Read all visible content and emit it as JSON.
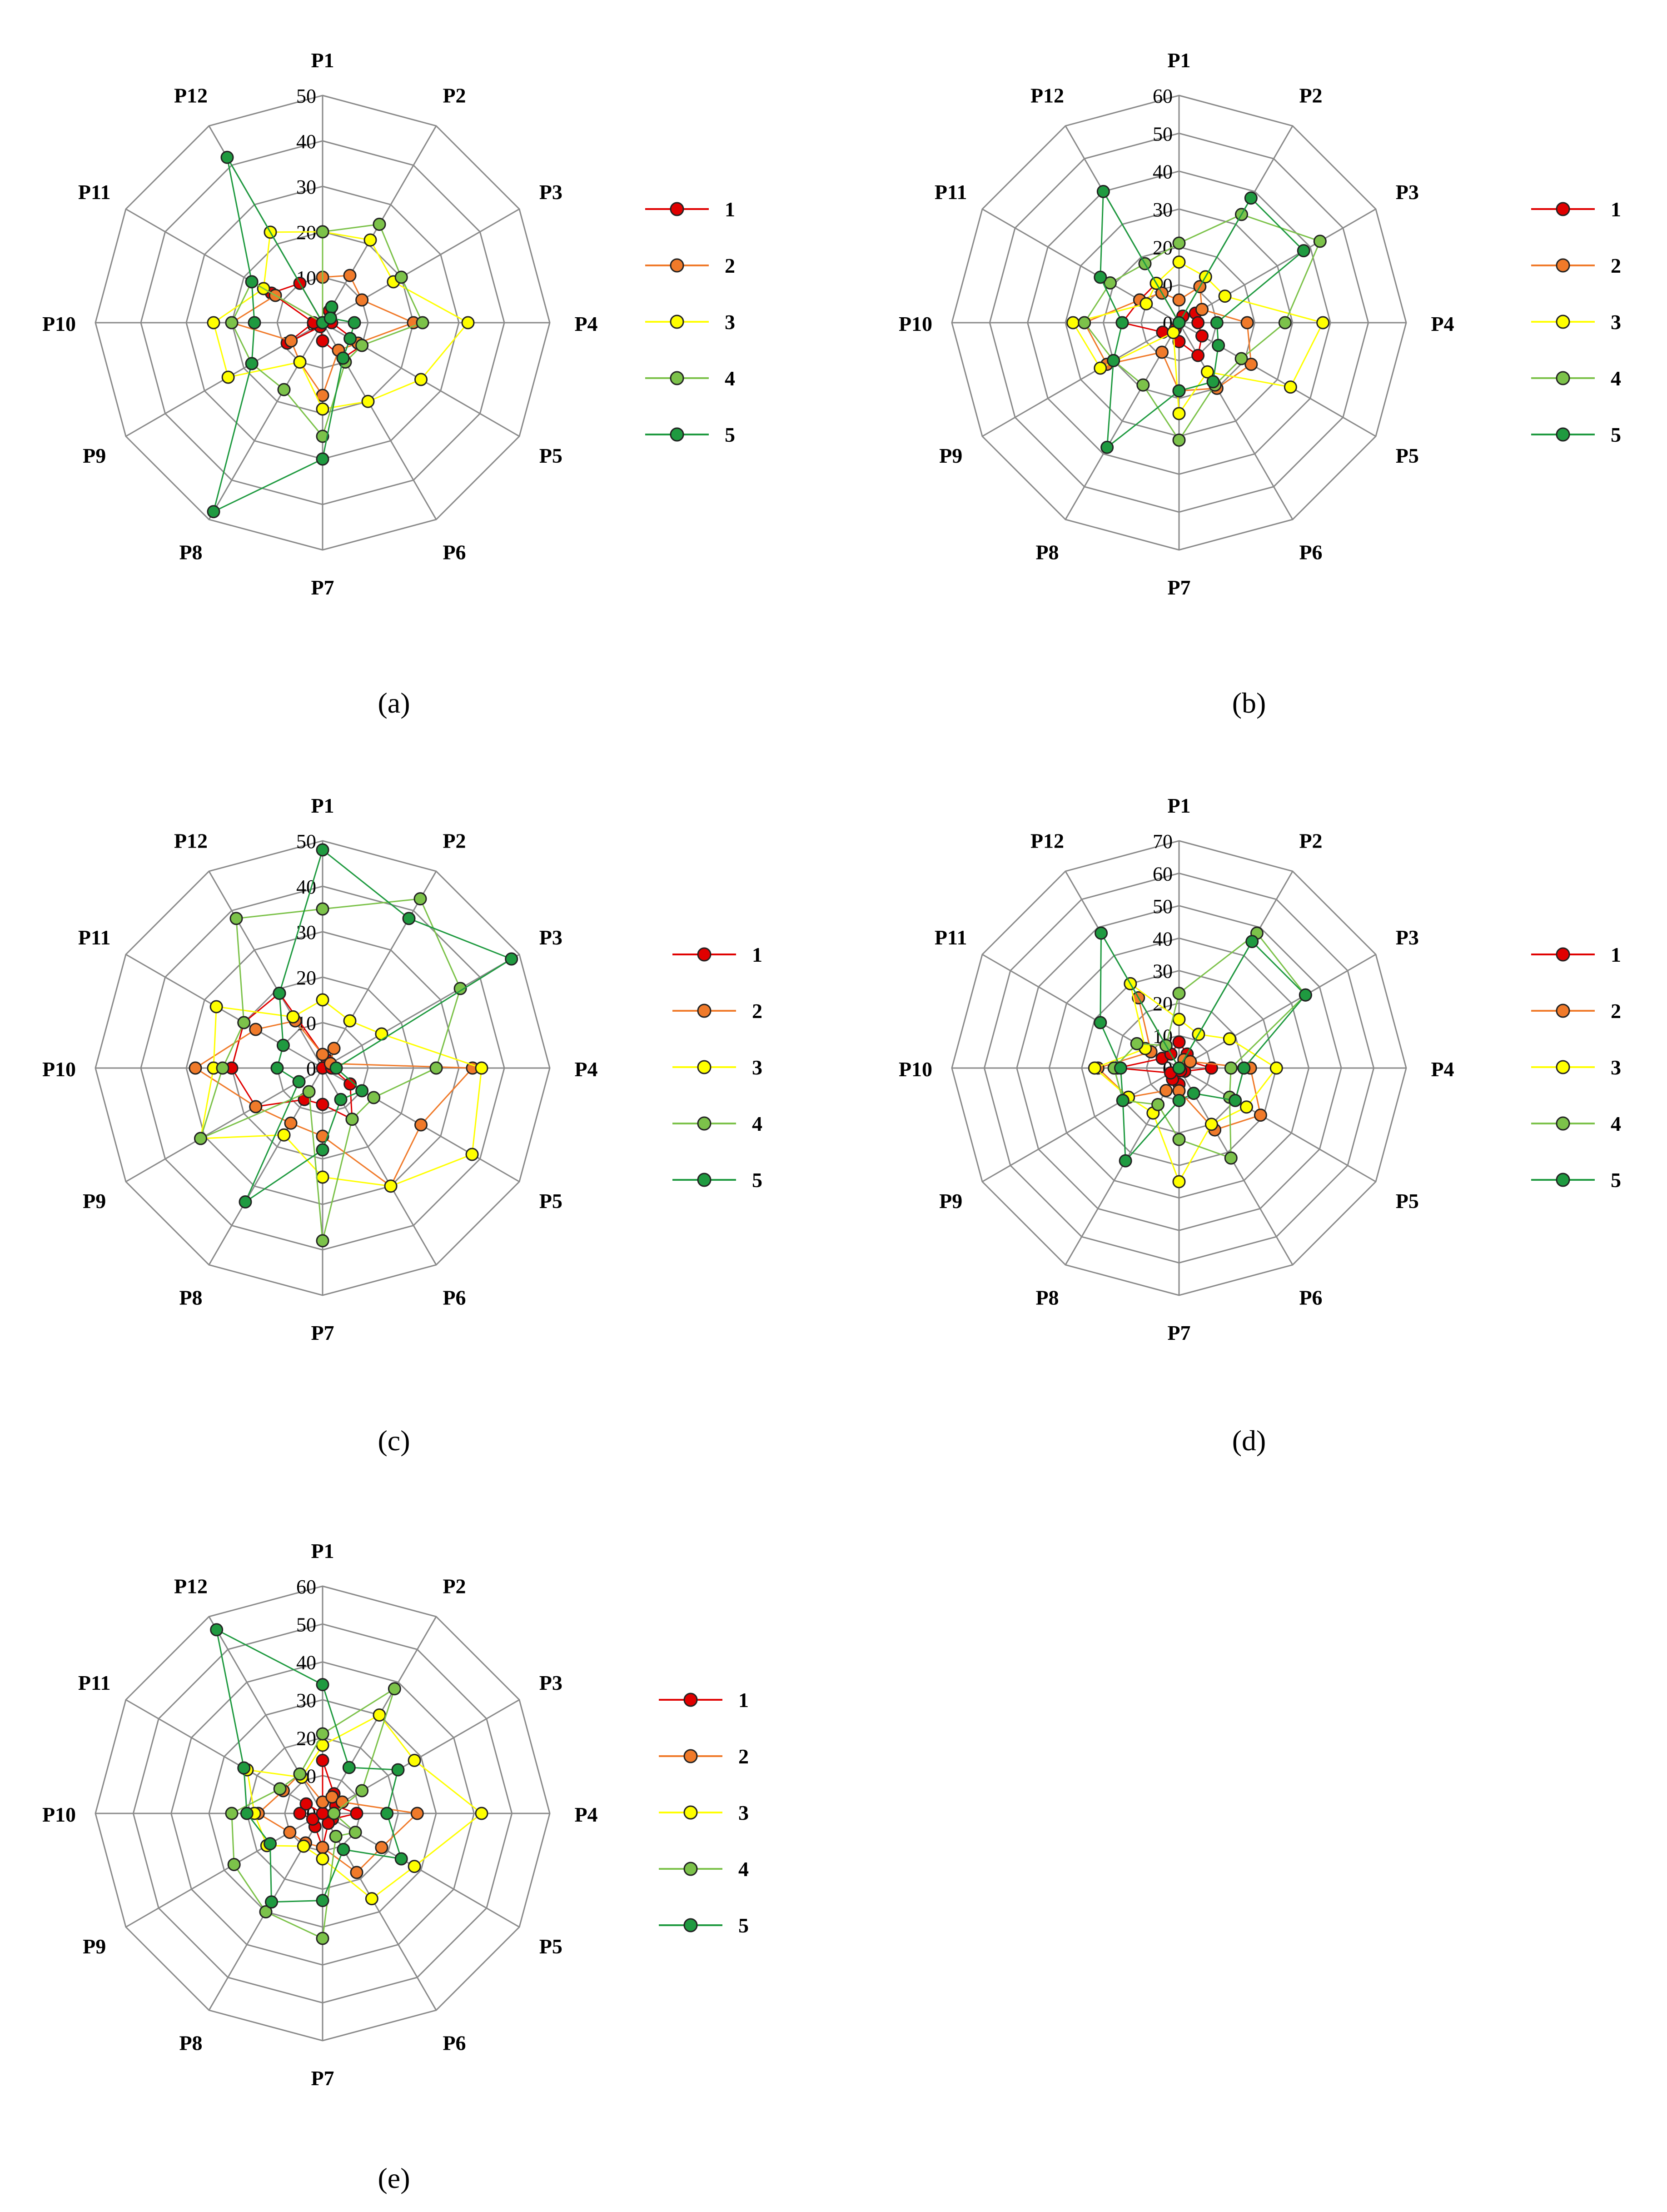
{
  "colors": {
    "1": "#e00000",
    "2": "#f07a2a",
    "3": "#ffff00",
    "4": "#7cc24a",
    "5": "#1f9a40",
    "grid": "#8a8a8a"
  },
  "chart_data": [
    {
      "type": "radar",
      "panel": "(a)",
      "categories": [
        "P1",
        "P2",
        "P3",
        "P4",
        "P5",
        "P6",
        "P7",
        "P8",
        "P9",
        "P10",
        "P11",
        "P12"
      ],
      "rlim": [
        0,
        50
      ],
      "ticks": [
        "0",
        "10",
        "20",
        "30",
        "40",
        "50"
      ],
      "legend": "right",
      "series": [
        {
          "name": "1",
          "values": [
            0,
            3,
            2,
            2,
            10,
            9,
            4,
            1,
            9,
            2,
            13,
            10
          ]
        },
        {
          "name": "2",
          "values": [
            10,
            12,
            10,
            20,
            9,
            7,
            16,
            10,
            8,
            20,
            12,
            0
          ]
        },
        {
          "name": "3",
          "values": [
            20,
            21,
            18,
            32,
            25,
            20,
            19,
            10,
            24,
            24,
            15,
            23
          ]
        },
        {
          "name": "4",
          "values": [
            20,
            25,
            20,
            22,
            10,
            10,
            25,
            17,
            18,
            20,
            18,
            0
          ]
        },
        {
          "name": "5",
          "values": [
            0,
            4,
            2,
            7,
            7,
            9,
            30,
            48,
            18,
            15,
            18,
            42
          ]
        }
      ]
    },
    {
      "type": "radar",
      "panel": "(b)",
      "categories": [
        "P1",
        "P2",
        "P3",
        "P4",
        "P5",
        "P6",
        "P7",
        "P8",
        "P9",
        "P10",
        "P11",
        "P12"
      ],
      "rlim": [
        0,
        60
      ],
      "ticks": [
        "0",
        "10",
        "20",
        "30",
        "40",
        "50",
        "60"
      ],
      "legend": "right",
      "series": [
        {
          "name": "1",
          "values": [
            0,
            2,
            5,
            5,
            7,
            10,
            5,
            2,
            5,
            15,
            12,
            12
          ]
        },
        {
          "name": "2",
          "values": [
            6,
            11,
            7,
            18,
            22,
            20,
            18,
            9,
            22,
            25,
            12,
            9
          ]
        },
        {
          "name": "3",
          "values": [
            16,
            14,
            14,
            38,
            34,
            15,
            24,
            3,
            24,
            28,
            10,
            12
          ]
        },
        {
          "name": "4",
          "values": [
            21,
            33,
            43,
            28,
            19,
            19,
            31,
            19,
            20,
            25,
            21,
            18
          ]
        },
        {
          "name": "5",
          "values": [
            0,
            38,
            38,
            10,
            12,
            18,
            18,
            38,
            20,
            15,
            24,
            40
          ]
        }
      ]
    },
    {
      "type": "radar",
      "panel": "(c)",
      "categories": [
        "P1",
        "P2",
        "P3",
        "P4",
        "P5",
        "P6",
        "P7",
        "P8",
        "P9",
        "P10",
        "P11",
        "P12"
      ],
      "rlim": [
        0,
        50
      ],
      "ticks": [
        "0",
        "10",
        "20",
        "30",
        "40",
        "50"
      ],
      "legend": "right",
      "series": [
        {
          "name": "1",
          "values": [
            3,
            2,
            0,
            2,
            7,
            13,
            8,
            8,
            17,
            20,
            20,
            19
          ]
        },
        {
          "name": "2",
          "values": [
            3,
            5,
            2,
            33,
            25,
            30,
            15,
            14,
            17,
            28,
            17,
            12
          ]
        },
        {
          "name": "3",
          "values": [
            15,
            12,
            15,
            35,
            38,
            30,
            24,
            17,
            31,
            24,
            27,
            13
          ]
        },
        {
          "name": "4",
          "values": [
            35,
            43,
            35,
            25,
            13,
            13,
            38,
            6,
            31,
            22,
            20,
            38
          ]
        },
        {
          "name": "5",
          "values": [
            48,
            38,
            48,
            3,
            10,
            8,
            18,
            34,
            6,
            10,
            10,
            19
          ]
        }
      ]
    },
    {
      "type": "radar",
      "panel": "(d)",
      "categories": [
        "P1",
        "P2",
        "P3",
        "P4",
        "P5",
        "P6",
        "P7",
        "P8",
        "P9",
        "P10",
        "P11",
        "P12"
      ],
      "rlim": [
        0,
        70
      ],
      "ticks": [
        "0",
        "10",
        "20",
        "30",
        "40",
        "50",
        "60",
        "70"
      ],
      "legend": "right",
      "series": [
        {
          "name": "1",
          "values": [
            8,
            5,
            4,
            10,
            2,
            1,
            5,
            4,
            3,
            19,
            6,
            5
          ]
        },
        {
          "name": "2",
          "values": [
            0,
            3,
            4,
            22,
            29,
            22,
            7,
            8,
            18,
            25,
            10,
            25
          ]
        },
        {
          "name": "3",
          "values": [
            15,
            12,
            18,
            30,
            24,
            20,
            35,
            16,
            18,
            26,
            12,
            30
          ]
        },
        {
          "name": "4",
          "values": [
            23,
            48,
            45,
            16,
            18,
            32,
            22,
            13,
            20,
            20,
            15,
            8
          ]
        },
        {
          "name": "5",
          "values": [
            0,
            45,
            45,
            20,
            20,
            9,
            10,
            33,
            20,
            18,
            28,
            48
          ]
        }
      ]
    },
    {
      "type": "radar",
      "panel": "(e)",
      "categories": [
        "P1",
        "P2",
        "P3",
        "P4",
        "P5",
        "P6",
        "P7",
        "P8",
        "P9",
        "P10",
        "P11",
        "P12"
      ],
      "rlim": [
        0,
        60
      ],
      "ticks": [
        "0",
        "10",
        "20",
        "30",
        "40",
        "50",
        "60"
      ],
      "legend": "right",
      "series": [
        {
          "name": "1",
          "values": [
            14,
            6,
            4,
            9,
            3,
            3,
            9,
            4,
            3,
            6,
            5,
            0
          ]
        },
        {
          "name": "2",
          "values": [
            3,
            5,
            6,
            25,
            18,
            18,
            9,
            9,
            10,
            17,
            12,
            12
          ]
        },
        {
          "name": "3",
          "values": [
            18,
            30,
            28,
            42,
            28,
            26,
            12,
            10,
            17,
            18,
            23,
            11
          ]
        },
        {
          "name": "4",
          "values": [
            21,
            38,
            12,
            3,
            10,
            7,
            33,
            30,
            27,
            24,
            13,
            12
          ]
        },
        {
          "name": "5",
          "values": [
            34,
            14,
            23,
            17,
            24,
            11,
            23,
            27,
            16,
            20,
            24,
            56
          ]
        }
      ]
    }
  ]
}
